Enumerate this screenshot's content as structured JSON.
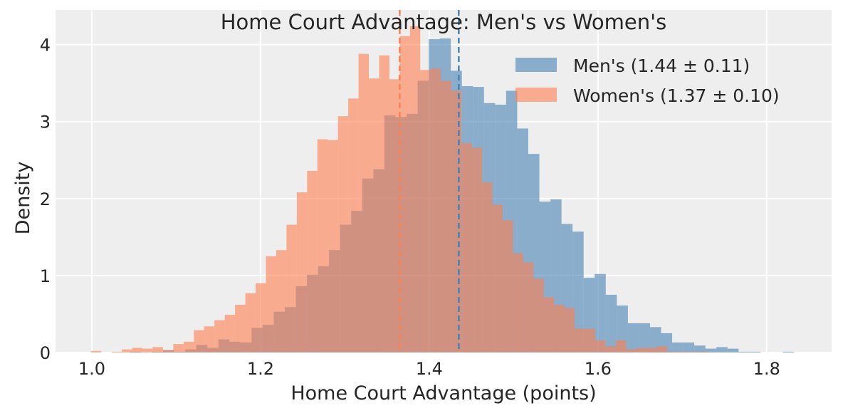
{
  "chart_data": {
    "type": "bar",
    "subtype": "overlaid-histogram",
    "title": "Home Court Advantage: Men's vs Women's",
    "xlabel": "Home Court Advantage (points)",
    "ylabel": "Density",
    "xlim": [
      0.957,
      1.877
    ],
    "ylim": [
      0,
      4.45
    ],
    "xticks": [
      "1.0",
      "1.2",
      "1.4",
      "1.6",
      "1.8"
    ],
    "xtick_values": [
      1.0,
      1.2,
      1.4,
      1.6,
      1.8
    ],
    "yticks": [
      "0",
      "1",
      "2",
      "3",
      "4"
    ],
    "ytick_values": [
      0,
      1,
      2,
      3,
      4
    ],
    "grid": true,
    "legend_position": "top-right",
    "background": "#eeeeee",
    "series": [
      {
        "name": "Men's (1.44 ± 0.11)",
        "color": "#4682b4",
        "alpha": 0.6,
        "bin_start": 1.0451,
        "bin_width": 0.01312,
        "mean": 1.435,
        "values": [
          0.01,
          0,
          0.01,
          0.03,
          0.01,
          0.04,
          0.1,
          0.06,
          0.17,
          0.14,
          0.13,
          0.32,
          0.36,
          0.53,
          0.59,
          0.86,
          1.01,
          1.12,
          1.33,
          1.66,
          1.84,
          2.26,
          2.38,
          3.08,
          3.06,
          3.1,
          3.53,
          4.07,
          4.08,
          3.66,
          3.46,
          3.45,
          3.24,
          3.22,
          3.4,
          2.91,
          2.58,
          1.96,
          1.99,
          1.67,
          1.57,
          0.97,
          1.02,
          0.75,
          0.61,
          0.38,
          0.38,
          0.33,
          0.25,
          0.13,
          0.13,
          0.09,
          0.05,
          0.07,
          0.05,
          0.01,
          0.01,
          0,
          0,
          0.01
        ]
      },
      {
        "name": "Women's (1.37 ± 0.10)",
        "color": "#ff7f50",
        "alpha": 0.6,
        "bin_start": 0.999,
        "bin_width": 0.0122,
        "mean": 1.365,
        "values": [
          0.02,
          0,
          0.01,
          0.04,
          0.06,
          0.05,
          0.07,
          0.03,
          0.11,
          0.14,
          0.29,
          0.34,
          0.42,
          0.49,
          0.62,
          0.77,
          0.9,
          1.25,
          1.33,
          1.66,
          2.08,
          2.36,
          2.77,
          2.76,
          3.07,
          3.3,
          3.88,
          3.56,
          3.86,
          3.55,
          4.11,
          4.24,
          3.67,
          3.69,
          3.53,
          3.4,
          2.72,
          2.66,
          2.21,
          1.92,
          1.72,
          1.29,
          1.17,
          0.96,
          0.72,
          0.62,
          0.58,
          0.31,
          0.31,
          0.16,
          0.08,
          0.16,
          0.04,
          0.06,
          0.06,
          0.08,
          0.01,
          0.01,
          0.01,
          0.01
        ]
      }
    ]
  }
}
